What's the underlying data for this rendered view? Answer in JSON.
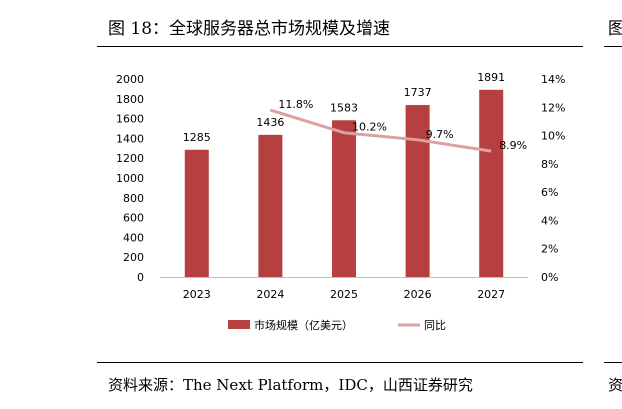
{
  "figure": {
    "title": "图 18：全球服务器总市场规模及增速",
    "source": "资料来源：The Next Platform，IDC，山西证券研究",
    "next_column_title": "图",
    "next_column_source": "资"
  },
  "colors": {
    "bar": "#b5403f",
    "line": "#dea0a0",
    "axis": "#bfbfbf",
    "text": "#000000"
  },
  "chart_data": {
    "type": "bar",
    "categories": [
      "2023",
      "2024",
      "2025",
      "2026",
      "2027"
    ],
    "series": [
      {
        "name": "市场规模（亿美元）",
        "type": "bar",
        "axis": "left",
        "values": [
          1285,
          1436,
          1583,
          1737,
          1891
        ],
        "labels": [
          "1285",
          "1436",
          "1583",
          "1737",
          "1891"
        ]
      },
      {
        "name": "同比",
        "type": "line",
        "axis": "right",
        "values": [
          null,
          11.8,
          10.2,
          9.7,
          8.9
        ],
        "labels": [
          "",
          "11.8%",
          "10.2%",
          "9.7%",
          "8.9%"
        ]
      }
    ],
    "y_left": {
      "range": [
        0,
        2000
      ],
      "ticks": [
        0,
        200,
        400,
        600,
        800,
        1000,
        1200,
        1400,
        1600,
        1800,
        2000
      ],
      "tick_labels": [
        "0",
        "200",
        "400",
        "600",
        "800",
        "1000",
        "1200",
        "1400",
        "1600",
        "1800",
        "2000"
      ]
    },
    "y_right": {
      "range": [
        0,
        14
      ],
      "ticks": [
        0,
        2,
        4,
        6,
        8,
        10,
        12,
        14
      ],
      "tick_labels": [
        "0%",
        "2%",
        "4%",
        "6%",
        "8%",
        "10%",
        "12%",
        "14%"
      ]
    },
    "grid": false,
    "legend": "bottom"
  }
}
